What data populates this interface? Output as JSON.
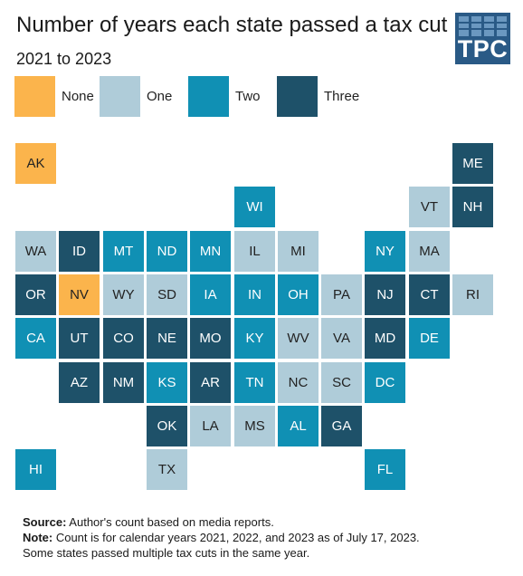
{
  "title": "Number of years each state passed a tax cut",
  "subtitle": "2021 to 2023",
  "logo": {
    "text": "TPC"
  },
  "chart_data": {
    "type": "tile-map",
    "legend": [
      {
        "key": "0",
        "label": "None",
        "color": "#fbb44c",
        "text_color": "#222222"
      },
      {
        "key": "1",
        "label": "One",
        "color": "#afccd9",
        "text_color": "#222222"
      },
      {
        "key": "2",
        "label": "Two",
        "color": "#1090b4",
        "text_color": "#ffffff"
      },
      {
        "key": "3",
        "label": "Three",
        "color": "#1e5169",
        "text_color": "#ffffff"
      }
    ],
    "states": [
      {
        "abbr": "AK",
        "value": 0
      },
      {
        "abbr": "ME",
        "value": 3
      },
      {
        "abbr": "WI",
        "value": 2
      },
      {
        "abbr": "VT",
        "value": 1
      },
      {
        "abbr": "NH",
        "value": 3
      },
      {
        "abbr": "WA",
        "value": 1
      },
      {
        "abbr": "ID",
        "value": 3
      },
      {
        "abbr": "MT",
        "value": 2
      },
      {
        "abbr": "ND",
        "value": 2
      },
      {
        "abbr": "MN",
        "value": 2
      },
      {
        "abbr": "IL",
        "value": 1
      },
      {
        "abbr": "MI",
        "value": 1
      },
      {
        "abbr": "NY",
        "value": 2
      },
      {
        "abbr": "MA",
        "value": 1
      },
      {
        "abbr": "OR",
        "value": 3
      },
      {
        "abbr": "NV",
        "value": 0
      },
      {
        "abbr": "WY",
        "value": 1
      },
      {
        "abbr": "SD",
        "value": 1
      },
      {
        "abbr": "IA",
        "value": 2
      },
      {
        "abbr": "IN",
        "value": 2
      },
      {
        "abbr": "OH",
        "value": 2
      },
      {
        "abbr": "PA",
        "value": 1
      },
      {
        "abbr": "NJ",
        "value": 3
      },
      {
        "abbr": "CT",
        "value": 3
      },
      {
        "abbr": "RI",
        "value": 1
      },
      {
        "abbr": "CA",
        "value": 2
      },
      {
        "abbr": "UT",
        "value": 3
      },
      {
        "abbr": "CO",
        "value": 3
      },
      {
        "abbr": "NE",
        "value": 3
      },
      {
        "abbr": "MO",
        "value": 3
      },
      {
        "abbr": "KY",
        "value": 2
      },
      {
        "abbr": "WV",
        "value": 1
      },
      {
        "abbr": "VA",
        "value": 1
      },
      {
        "abbr": "MD",
        "value": 3
      },
      {
        "abbr": "DE",
        "value": 2
      },
      {
        "abbr": "AZ",
        "value": 3
      },
      {
        "abbr": "NM",
        "value": 3
      },
      {
        "abbr": "KS",
        "value": 2
      },
      {
        "abbr": "AR",
        "value": 3
      },
      {
        "abbr": "TN",
        "value": 2
      },
      {
        "abbr": "NC",
        "value": 1
      },
      {
        "abbr": "SC",
        "value": 1
      },
      {
        "abbr": "DC",
        "value": 2
      },
      {
        "abbr": "OK",
        "value": 3
      },
      {
        "abbr": "LA",
        "value": 1
      },
      {
        "abbr": "MS",
        "value": 1
      },
      {
        "abbr": "AL",
        "value": 2
      },
      {
        "abbr": "GA",
        "value": 3
      },
      {
        "abbr": "HI",
        "value": 2
      },
      {
        "abbr": "TX",
        "value": 1
      },
      {
        "abbr": "FL",
        "value": 2
      }
    ]
  },
  "notes": {
    "source_label": "Source:",
    "source_text": " Author's count based on media reports.",
    "note_label": "Note:",
    "note_text": " Count is for calendar years 2021, 2022, and 2023 as of July 17, 2023.",
    "note_text_2": "Some states passed multiple tax cuts in the same year."
  }
}
